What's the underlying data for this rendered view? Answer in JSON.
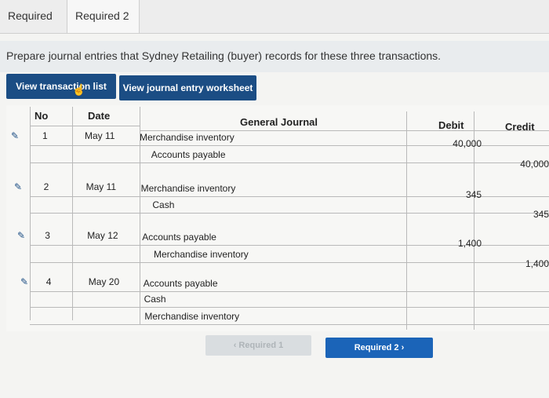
{
  "tabs": [
    {
      "label": "Required 1"
    },
    {
      "label": "Required 2"
    }
  ],
  "instruction": "Prepare journal entries that Sydney Retailing (buyer) records for these three transactions.",
  "buttons": {
    "transaction_list": "View transaction list",
    "journal_worksheet": "View journal entry worksheet"
  },
  "table": {
    "headers": {
      "no": "No",
      "date": "Date",
      "general_journal": "General Journal",
      "debit": "Debit",
      "credit": "Credit"
    },
    "rows": [
      {
        "no": "1",
        "date": "May 11",
        "account": "Merchandise inventory",
        "debit": "40,000",
        "credit": ""
      },
      {
        "no": "",
        "date": "",
        "account": "Accounts payable",
        "debit": "",
        "credit": "40,000"
      },
      {
        "no": "2",
        "date": "May 11",
        "account": "Merchandise inventory",
        "debit": "345",
        "credit": ""
      },
      {
        "no": "",
        "date": "",
        "account": "Cash",
        "debit": "",
        "credit": "345"
      },
      {
        "no": "3",
        "date": "May 12",
        "account": "Accounts payable",
        "debit": "1,400",
        "credit": ""
      },
      {
        "no": "",
        "date": "",
        "account": "Merchandise inventory",
        "debit": "",
        "credit": "1,400"
      },
      {
        "no": "4",
        "date": "May 20",
        "account": "Accounts payable",
        "debit": "",
        "credit": ""
      },
      {
        "no": "",
        "date": "",
        "account": "Cash",
        "debit": "",
        "credit": ""
      },
      {
        "no": "",
        "date": "",
        "account": "Merchandise inventory",
        "debit": "",
        "credit": ""
      }
    ]
  },
  "nav": {
    "prev_label": "‹  Required 1",
    "next_label": "Required 2  ›"
  },
  "icons": {
    "edit": "pencil-icon",
    "cursor": "hand-pointer-icon"
  },
  "colors": {
    "button_bg": "#1b4d84",
    "next_bg": "#1b64b8",
    "prev_bg": "#d9dde0"
  }
}
